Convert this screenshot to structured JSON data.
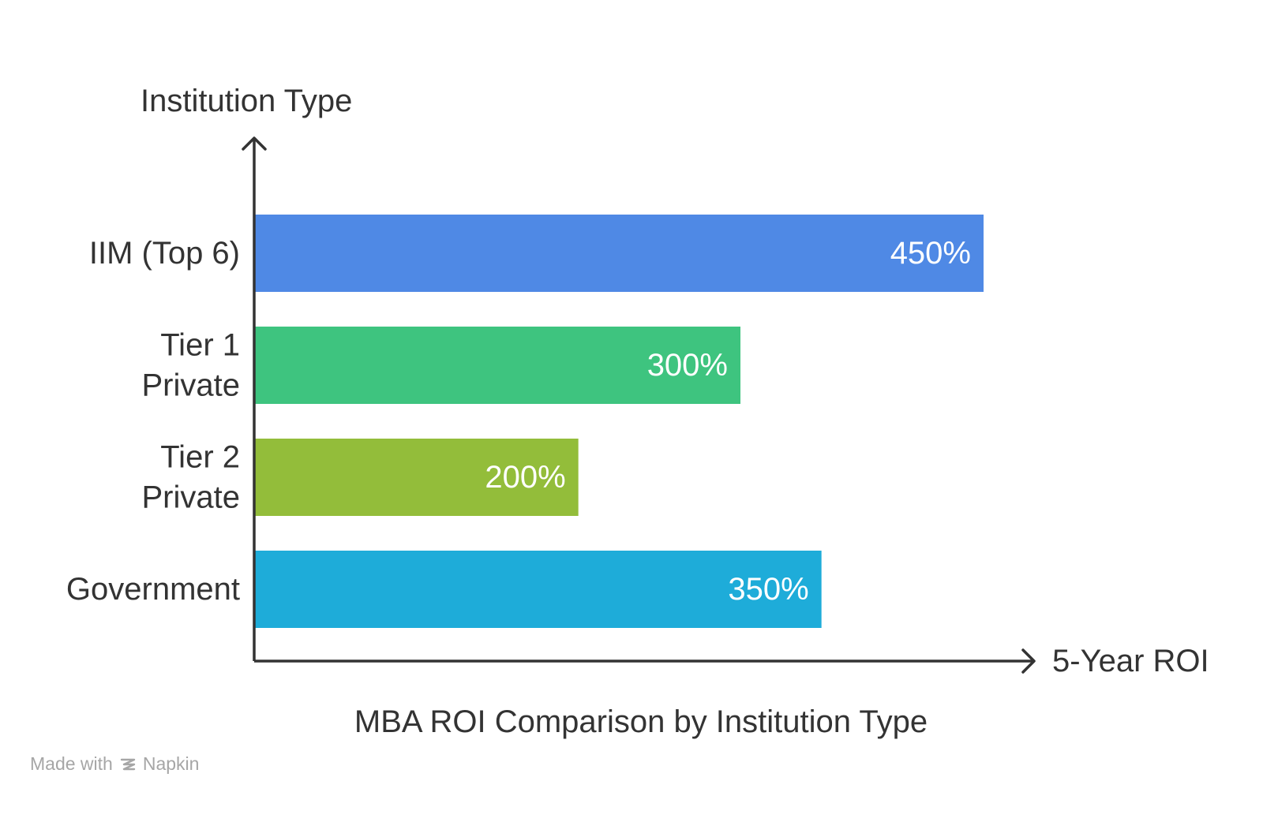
{
  "chart_data": {
    "type": "bar",
    "orientation": "horizontal",
    "title": "MBA ROI Comparison by Institution Type",
    "xlabel": "5-Year ROI",
    "ylabel": "Institution Type",
    "categories": [
      [
        "IIM (Top 6)"
      ],
      [
        "Tier 1",
        "Private"
      ],
      [
        "Tier 2",
        "Private"
      ],
      [
        "Government"
      ]
    ],
    "values": [
      450,
      300,
      200,
      350
    ],
    "value_labels": [
      "450%",
      "300%",
      "200%",
      "350%"
    ],
    "colors": [
      "#4f89e5",
      "#3ec47f",
      "#93bd3a",
      "#1eacd9"
    ],
    "xlim": [
      0,
      450
    ],
    "grid": false,
    "legend": "none"
  },
  "watermark": {
    "prefix": "Made with",
    "brand": "Napkin",
    "icon": "napkin-logo-icon"
  },
  "colors": {
    "axis": "#333333",
    "label_text": "#333333",
    "bar_text": "#ffffff",
    "watermark": "#a6a6a6"
  }
}
